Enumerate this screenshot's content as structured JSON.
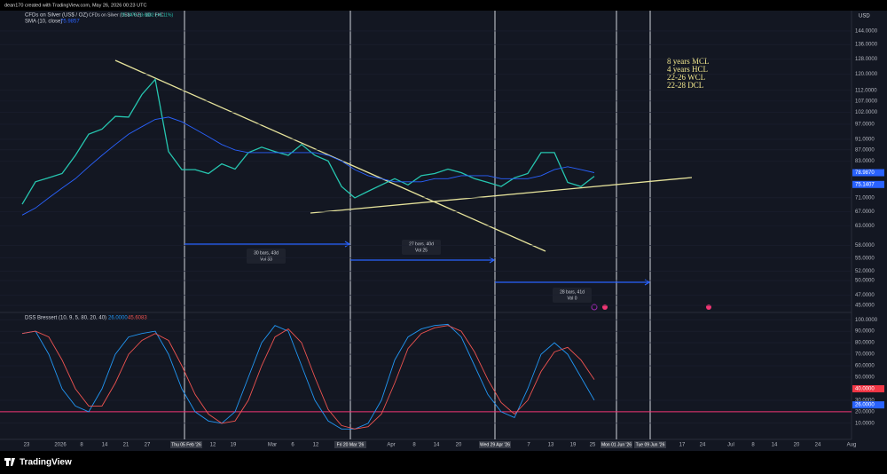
{
  "header": "dean170 created with TradingView.com, May 26, 2026 00:23 UTC",
  "brand": "TradingView",
  "chart_data": [
    {
      "type": "line",
      "log_scale": true,
      "unit": "USD",
      "title": "CFDs on Silver (US$ / OZ) · 1D · FXC",
      "subtitle": "75.7475 +3.6882 (+5.11%)",
      "ylim": [
        44,
        157
      ],
      "yticks": [
        {
          "value": 144,
          "label": "144.0000"
        },
        {
          "value": 136,
          "label": "136.0000"
        },
        {
          "value": 128,
          "label": "128.0000"
        },
        {
          "value": 120,
          "label": "120.0000"
        },
        {
          "value": 112,
          "label": "112.0000"
        },
        {
          "value": 107,
          "label": "107.0000"
        },
        {
          "value": 102,
          "label": "102.0000"
        },
        {
          "value": 97,
          "label": "97.0000"
        },
        {
          "value": 91,
          "label": "91.0000"
        },
        {
          "value": 87,
          "label": "87.0000"
        },
        {
          "value": 83,
          "label": "83.0000"
        },
        {
          "value": 71,
          "label": "71.0000"
        },
        {
          "value": 67,
          "label": "67.0000"
        },
        {
          "value": 63,
          "label": "63.0000"
        },
        {
          "value": 58,
          "label": "58.0000"
        },
        {
          "value": 55,
          "label": "55.0000"
        },
        {
          "value": 52,
          "label": "52.0000"
        },
        {
          "value": 50,
          "label": "50.0000"
        },
        {
          "value": 47,
          "label": "47.0000"
        },
        {
          "value": 45,
          "label": "45.0000"
        }
      ],
      "series": [
        {
          "name": "CFDs on Silver (US$ / OZ)",
          "color": "#26c6b0",
          "values": [
            69.1,
            76,
            77.3,
            78.7,
            85,
            93,
            95,
            100.3,
            100,
            110,
            117.3,
            86.4,
            80,
            80,
            78.7,
            82,
            80.2,
            86,
            88,
            86.4,
            85,
            89,
            85,
            83,
            74.5,
            71,
            73,
            75,
            77,
            75,
            78,
            78.7,
            80.2,
            79,
            77,
            75.8,
            74.5,
            77.3,
            78.7,
            86,
            86,
            75.8,
            74.5,
            77.8
          ]
        },
        {
          "name": "SMA (10, close)",
          "color": "#2962ff",
          "values": [
            66,
            68,
            71,
            74,
            77,
            81,
            85,
            89,
            93,
            96,
            99,
            100,
            98,
            95,
            92,
            89,
            87,
            86,
            86,
            86,
            86,
            86,
            86,
            85,
            83,
            80,
            78,
            77,
            76,
            76,
            76,
            77,
            77,
            78,
            78,
            78,
            77,
            77,
            77,
            78,
            80,
            81,
            80,
            79
          ]
        }
      ],
      "price_labels": [
        {
          "value": 78.987,
          "label": "78.9870"
        },
        {
          "value": 75.1407,
          "label": "75.1407"
        }
      ],
      "legend_values": [
        "75.9857"
      ],
      "annotations": [
        "8 years MCL",
        "4 years HCL",
        "22-26 WCL",
        "22-28 DCL"
      ],
      "ranges": [
        {
          "line1": "30 bars, 43d",
          "line2": "Vol 33"
        },
        {
          "line1": "27 bars, 40d",
          "line2": "Vol 25"
        },
        {
          "line1": "28 bars, 41d",
          "line2": "Vol 0"
        }
      ]
    },
    {
      "type": "line",
      "title": "DSS Bressert (10, 9, 5, 80, 20, 40)",
      "ylim": [
        -4,
        104
      ],
      "yticks": [
        {
          "value": 100,
          "label": "100.0000"
        },
        {
          "value": 90,
          "label": "90.0000"
        },
        {
          "value": 80,
          "label": "80.0000"
        },
        {
          "value": 70,
          "label": "70.0000"
        },
        {
          "value": 60,
          "label": "60.0000"
        },
        {
          "value": 50,
          "label": "50.0000"
        },
        {
          "value": 30,
          "label": "30.0000"
        },
        {
          "value": 10,
          "label": "10.0000"
        }
      ],
      "level": {
        "value": 20,
        "label": "20.0000",
        "color": "#f23674"
      },
      "series": [
        {
          "name": "26.0000",
          "color": "#2196f3",
          "values": [
            88,
            90,
            70,
            40,
            25,
            20,
            40,
            70,
            85,
            88,
            90,
            70,
            40,
            20,
            12,
            10,
            20,
            50,
            80,
            95,
            90,
            60,
            30,
            12,
            5,
            5,
            10,
            30,
            65,
            85,
            92,
            95,
            96,
            85,
            60,
            35,
            20,
            15,
            40,
            70,
            80,
            70,
            50,
            30
          ]
        },
        {
          "name": "45.6083",
          "color": "#ef5350",
          "values": [
            88,
            90,
            85,
            65,
            40,
            25,
            25,
            45,
            70,
            82,
            88,
            82,
            60,
            35,
            18,
            10,
            12,
            30,
            60,
            85,
            92,
            80,
            50,
            22,
            8,
            5,
            7,
            18,
            45,
            75,
            88,
            93,
            95,
            90,
            72,
            48,
            28,
            18,
            30,
            55,
            72,
            76,
            65,
            48
          ]
        }
      ],
      "value_boxes": [
        {
          "value": 40,
          "label": "40.0000",
          "color": "#f23645"
        },
        {
          "value": 26,
          "label": "26.0000",
          "color": "#2962ff"
        }
      ]
    }
  ],
  "x_labels": [
    "23",
    "2026",
    "8",
    "14",
    "21",
    "27",
    "Thu 05 Feb '26",
    "12",
    "19",
    "Mar",
    "6",
    "12",
    "Fri 20 Mar '26",
    "Apr",
    "8",
    "14",
    "20",
    "Wed 29 Apr '26",
    "7",
    "13",
    "19",
    "25",
    "Mon 01 Jun '26",
    "Tue 09 Jun '26",
    "17",
    "24",
    "Jul",
    "8",
    "14",
    "20",
    "24",
    "Aug"
  ]
}
